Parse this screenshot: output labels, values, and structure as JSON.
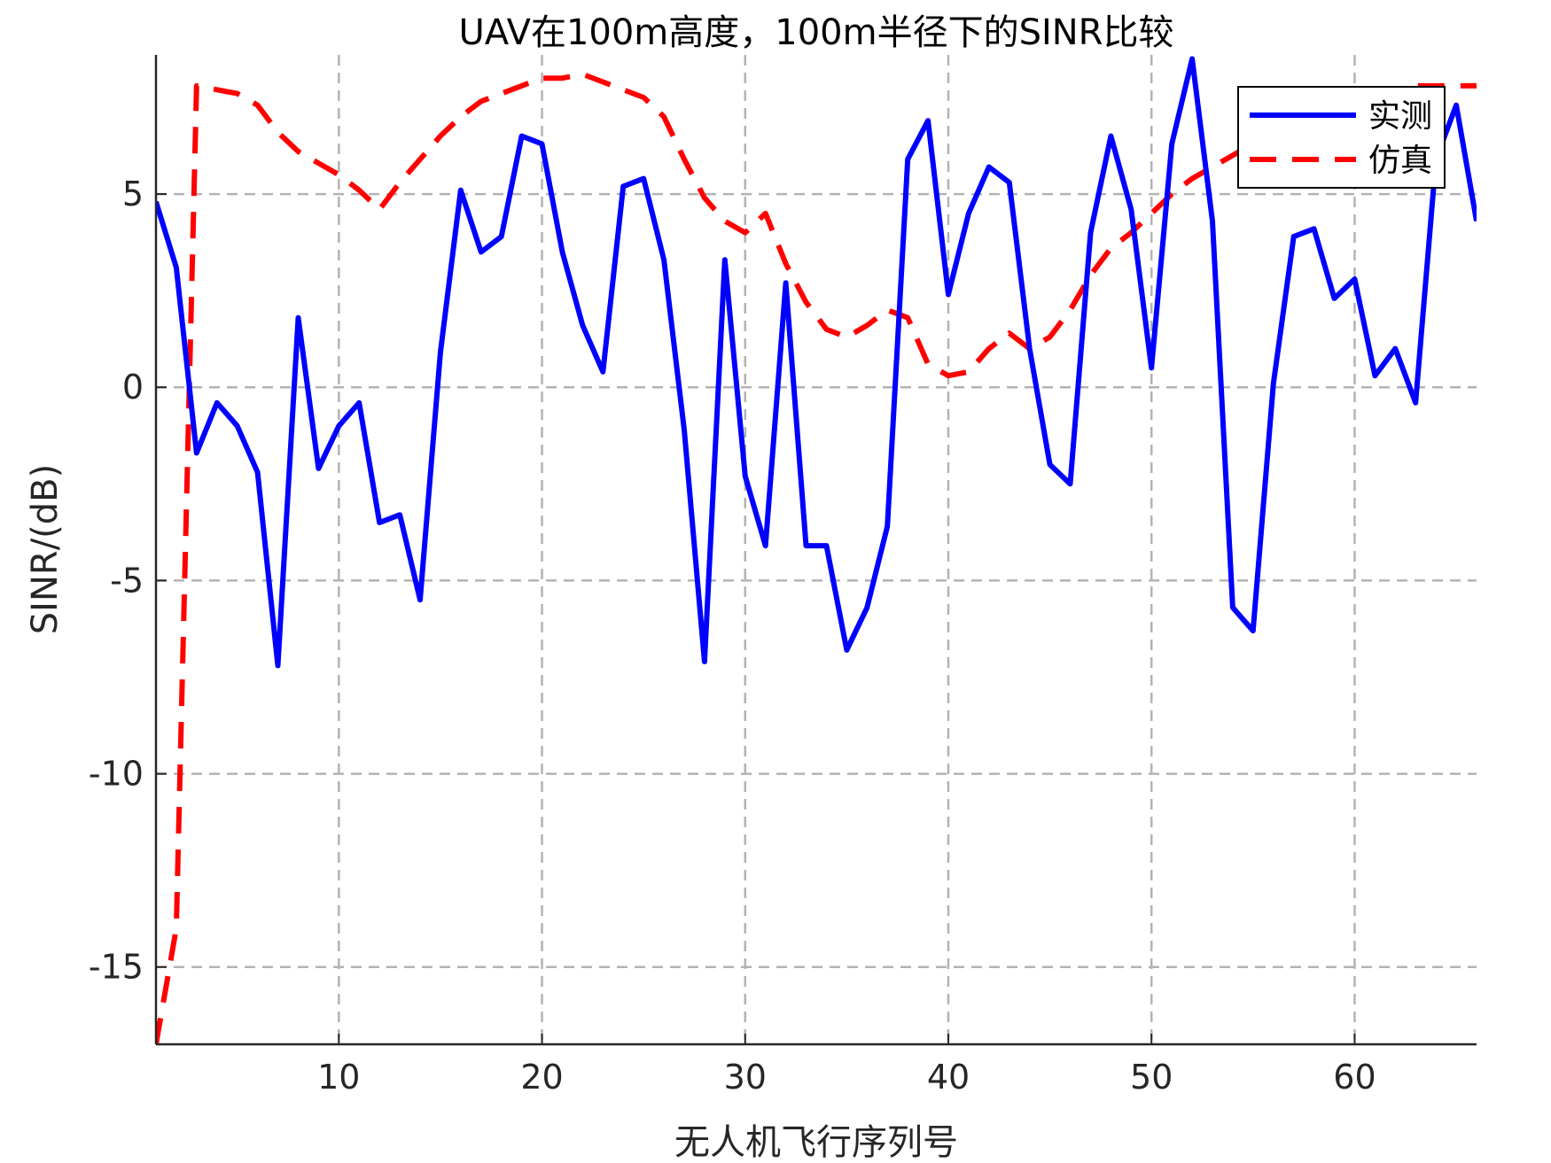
{
  "chart_data": {
    "type": "line",
    "title": "UAV在100m高度，100m半径下的SINR比较",
    "xlabel": "无人机飞行序列号",
    "ylabel": "SINR/(dB)",
    "xlim": [
      1,
      66
    ],
    "ylim": [
      -17,
      8.6
    ],
    "xticks": [
      10,
      20,
      30,
      40,
      50,
      60
    ],
    "yticks": [
      -15,
      -10,
      -5,
      0,
      5
    ],
    "grid": true,
    "legend_position": "top-right",
    "x": [
      1,
      2,
      3,
      4,
      5,
      6,
      7,
      8,
      9,
      10,
      11,
      12,
      13,
      14,
      15,
      16,
      17,
      18,
      19,
      20,
      21,
      22,
      23,
      24,
      25,
      26,
      27,
      28,
      29,
      30,
      31,
      32,
      33,
      34,
      35,
      36,
      37,
      38,
      39,
      40,
      41,
      42,
      43,
      44,
      45,
      46,
      47,
      48,
      49,
      50,
      51,
      52,
      53,
      54,
      55,
      56,
      57,
      58,
      59,
      60,
      61,
      62,
      63,
      64,
      65,
      66
    ],
    "series": [
      {
        "name": "实测",
        "color": "#0000ff",
        "style": "solid",
        "values": [
          4.8,
          3.1,
          -1.7,
          -0.4,
          -1.0,
          -2.2,
          -7.2,
          1.8,
          -2.1,
          -1.0,
          -0.4,
          -3.5,
          -3.3,
          -5.5,
          0.9,
          5.1,
          3.5,
          3.9,
          6.5,
          6.3,
          3.5,
          1.6,
          0.4,
          5.2,
          5.4,
          3.3,
          -1.1,
          -7.1,
          3.3,
          -2.3,
          -4.1,
          2.7,
          -4.1,
          -4.1,
          -6.8,
          -5.7,
          -3.6,
          5.9,
          6.9,
          2.4,
          4.5,
          5.7,
          5.3,
          1.0,
          -2.0,
          -2.5,
          4.0,
          6.5,
          4.6,
          0.5,
          6.3,
          8.5,
          4.3,
          -5.7,
          -6.3,
          0.1,
          3.9,
          4.1,
          2.3,
          2.8,
          0.3,
          1.0,
          -0.4,
          5.9,
          7.3,
          4.3
        ]
      },
      {
        "name": "仿真",
        "color": "#ff0000",
        "style": "dashed",
        "values": [
          -17.0,
          -14.0,
          7.8,
          7.7,
          7.6,
          7.3,
          6.6,
          6.1,
          5.8,
          5.5,
          5.1,
          4.6,
          5.3,
          5.9,
          6.5,
          7.0,
          7.4,
          7.6,
          7.8,
          8.0,
          8.0,
          8.1,
          7.9,
          7.7,
          7.5,
          7.0,
          5.9,
          4.9,
          4.3,
          4.0,
          4.5,
          3.2,
          2.2,
          1.5,
          1.3,
          1.6,
          2.0,
          1.8,
          0.6,
          0.3,
          0.4,
          1.0,
          1.4,
          1.0,
          1.3,
          2.0,
          2.9,
          3.6,
          4.0,
          4.5,
          5.0,
          5.4,
          5.7,
          6.0,
          6.3,
          6.6,
          6.8,
          7.0,
          7.1,
          7.3,
          7.5,
          7.7,
          7.8,
          7.8,
          7.8,
          7.8
        ]
      }
    ]
  }
}
